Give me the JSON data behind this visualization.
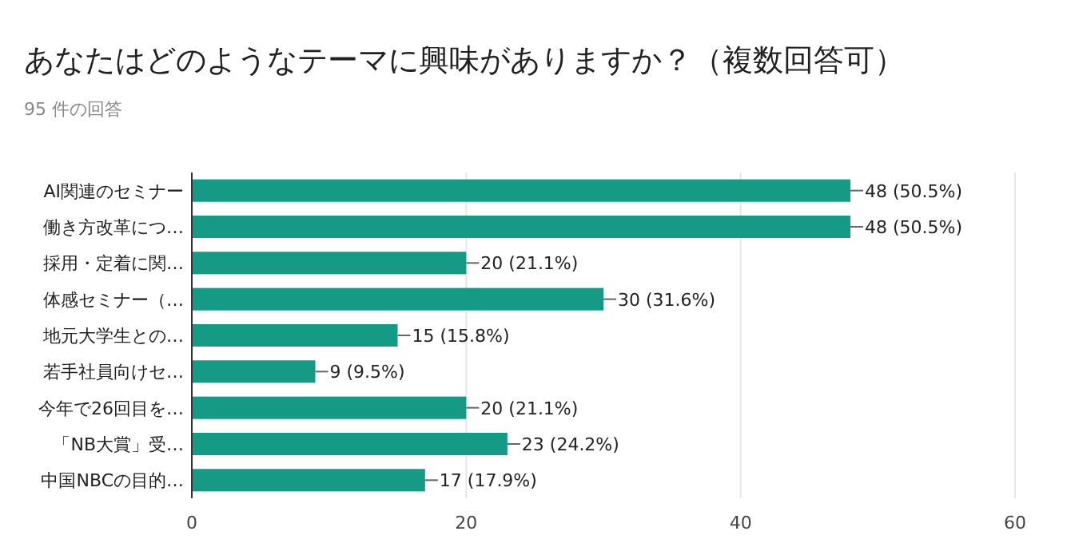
{
  "chart_data": {
    "type": "bar",
    "orientation": "horizontal",
    "title": "あなたはどのようなテーマに興味がありますか？（複数回答可）",
    "subtitle": "95 件の回答",
    "categories": [
      "AI関連のセミナー",
      "働き方改革につ…",
      "採用・定着に関…",
      "体感セミナー（…",
      "地元大学生との…",
      "若手社員向けセ…",
      "今年で26回目を…",
      "「NB大賞」受…",
      "中国NBCの目的…"
    ],
    "values": [
      48,
      48,
      20,
      30,
      15,
      9,
      20,
      23,
      17
    ],
    "value_labels": [
      "48 (50.5%)",
      "48 (50.5%)",
      "20 (21.1%)",
      "30 (31.6%)",
      "15 (15.8%)",
      "9 (9.5%)",
      "20 (21.1%)",
      "23 (24.2%)",
      "17 (17.9%)"
    ],
    "color": "#159a86",
    "xlim": [
      0,
      60
    ],
    "xticks": [
      0,
      20,
      40,
      60
    ],
    "grid": "x"
  }
}
